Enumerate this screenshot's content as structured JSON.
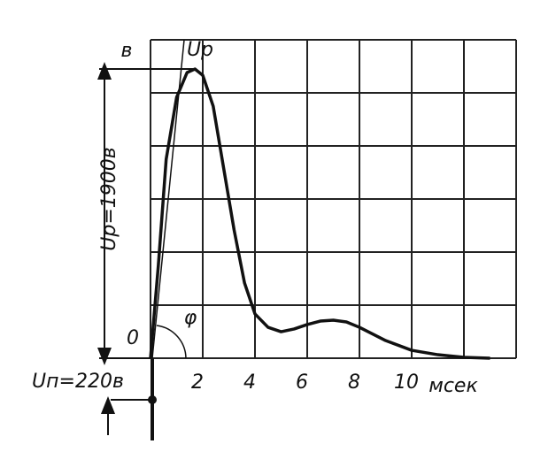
{
  "chart_data": {
    "type": "line",
    "y_unit_label": "в",
    "zero_label": "0",
    "peak_label": "Uр",
    "peak_annotation": "Uр=1900в",
    "base_annotation": "Uп=220в",
    "angle_label": "φ",
    "x_unit_label": "мсек",
    "x": [
      0,
      0.3,
      0.6,
      1.0,
      1.4,
      1.7,
      2.0,
      2.4,
      2.8,
      3.2,
      3.6,
      4.0,
      4.5,
      5.0,
      5.5,
      6.0,
      6.5,
      7.0,
      7.5,
      8.0,
      9.0,
      10,
      11,
      12,
      13
    ],
    "series": [
      {
        "color": "#111111",
        "values": [
          0,
          610,
          1307,
          1714,
          1877,
          1900,
          1859,
          1656,
          1249,
          843,
          494,
          291,
          203,
          174,
          192,
          221,
          244,
          250,
          238,
          203,
          116,
          52,
          23,
          6,
          0
        ]
      }
    ],
    "xlim": [
      0,
      14
    ],
    "xticks": [
      2,
      4,
      6,
      8,
      10
    ],
    "ylim": [
      0,
      2092
    ],
    "grid": true
  }
}
